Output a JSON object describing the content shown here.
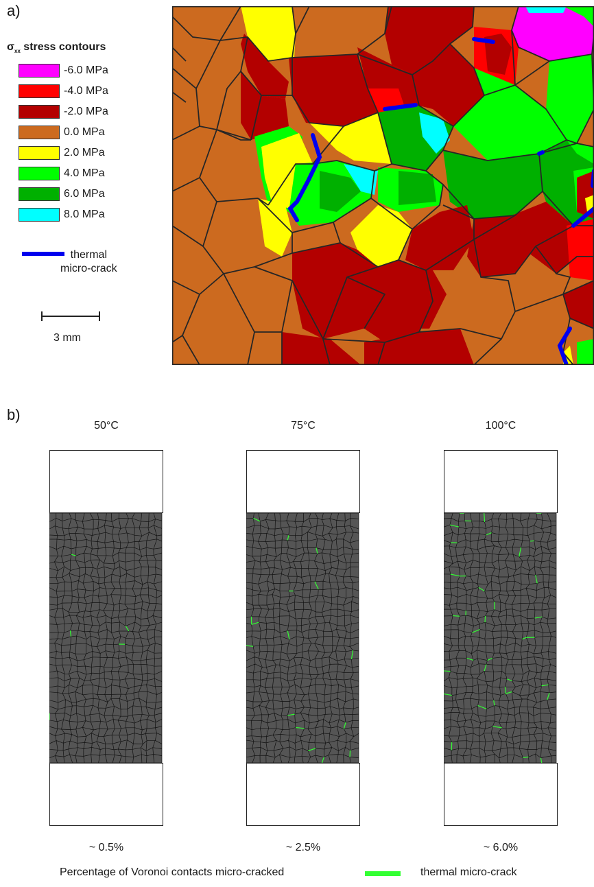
{
  "panel_a": {
    "letter": "a)",
    "legend": {
      "title_main": "σ",
      "title_sub": "xx",
      "title_rest": " stress contours",
      "items": [
        {
          "label": "-6.0 MPa",
          "color": "#ff00ff"
        },
        {
          "label": "-4.0 MPa",
          "color": "#ff0000"
        },
        {
          "label": "-2.0 MPa",
          "color": "#b30000"
        },
        {
          "label": "0.0 MPa",
          "color": "#cc6a1f"
        },
        {
          "label": "2.0 MPa",
          "color": "#ffff00"
        },
        {
          "label": "4.0 MPa",
          "color": "#00ff00"
        },
        {
          "label": "6.0 MPa",
          "color": "#00b000"
        },
        {
          "label": "8.0 MPa",
          "color": "#00ffff"
        }
      ],
      "crack_label_line1": "thermal",
      "crack_label_line2": "micro-crack",
      "crack_color": "#0000ee",
      "scale_label": "3 mm"
    }
  },
  "panel_b": {
    "letter": "b)",
    "specimens": [
      {
        "temperature": "50°C",
        "percentage": "~ 0.5%",
        "crack_fraction": 0.005
      },
      {
        "temperature": "75°C",
        "percentage": "~ 2.5%",
        "crack_fraction": 0.025
      },
      {
        "temperature": "100°C",
        "percentage": "~ 6.0%",
        "crack_fraction": 0.06
      }
    ],
    "footer_caption": "Percentage of Voronoi contacts micro-cracked",
    "crack_legend_label": "thermal micro-crack",
    "crack_color": "#33ff33",
    "grain_color": "#555555"
  }
}
